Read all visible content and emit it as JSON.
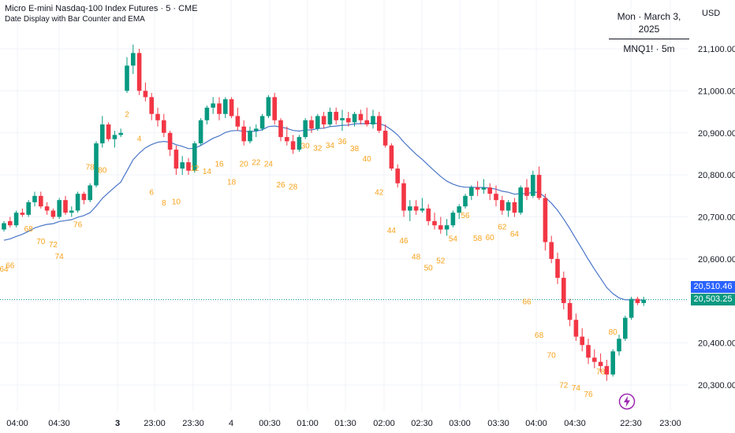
{
  "header": {
    "symbol_title": "Micro E-mini Nasdaq-100 Index Futures · 5 · CME",
    "indicator_title": "Date Display with Bar Counter and EMA"
  },
  "date_panel": {
    "date": "Mon · March 3, 2025",
    "ticker": "MNQ1! · 5m"
  },
  "currency": "USD",
  "price_tags": {
    "ema": "20,510.46",
    "last": "20,503.25"
  },
  "colors": {
    "up": "#089981",
    "down": "#f23645",
    "ema": "#4a76c8",
    "label": "#f7a21b",
    "grid": "#f0f3fa",
    "axis_text": "#131722",
    "dotted": "#089981"
  },
  "icons": {
    "bolt": "lightning-bolt-icon"
  },
  "chart_data": {
    "type": "candlestick",
    "y_axis_ticks": [
      "21,100.00",
      "21,000.00",
      "20,900.00",
      "20,800.00",
      "20,700.00",
      "20,600.00",
      "20,500.00",
      "20,400.00",
      "20,300.00"
    ],
    "y_axis_values": [
      21100,
      21000,
      20900,
      20800,
      20700,
      20600,
      20500,
      20400,
      20300
    ],
    "ylim": [
      20250,
      21210
    ],
    "x_axis_ticks": [
      "04:00",
      "04:30",
      "3",
      "23:00",
      "23:30",
      "4",
      "00:30",
      "01:00",
      "01:30",
      "02:00",
      "02:30",
      "03:00",
      "03:30",
      "04:00",
      "04:30",
      "22:30",
      "23:00"
    ],
    "last_price": 20503.25,
    "ema_value": 20510.46,
    "candles": [
      [
        20670,
        20690,
        20665,
        20685
      ],
      [
        20690,
        20700,
        20675,
        20680
      ],
      [
        20680,
        20715,
        20675,
        20710
      ],
      [
        20710,
        20720,
        20700,
        20705
      ],
      [
        20705,
        20740,
        20700,
        20735
      ],
      [
        20735,
        20760,
        20725,
        20750
      ],
      [
        20750,
        20760,
        20720,
        20725
      ],
      [
        20725,
        20735,
        20705,
        20715
      ],
      [
        20715,
        20720,
        20695,
        20700
      ],
      [
        20700,
        20745,
        20695,
        20740
      ],
      [
        20740,
        20750,
        20705,
        20710
      ],
      [
        20710,
        20725,
        20700,
        20715
      ],
      [
        20715,
        20760,
        20710,
        20755
      ],
      [
        20755,
        20760,
        20730,
        20740
      ],
      [
        20740,
        20780,
        20735,
        20775
      ],
      [
        20775,
        20880,
        20770,
        20875
      ],
      [
        20875,
        20940,
        20865,
        20920
      ],
      [
        20920,
        20925,
        20880,
        20885
      ],
      [
        20885,
        20905,
        20865,
        20895
      ],
      [
        20895,
        20910,
        20890,
        20900
      ],
      [
        21000,
        21080,
        20995,
        21060
      ],
      [
        21060,
        21110,
        21040,
        21090
      ],
      [
        21090,
        21100,
        20990,
        21000
      ],
      [
        21000,
        21020,
        20975,
        20985
      ],
      [
        20985,
        20995,
        20930,
        20945
      ],
      [
        20945,
        20960,
        20915,
        20930
      ],
      [
        20930,
        20945,
        20890,
        20900
      ],
      [
        20900,
        20905,
        20845,
        20860
      ],
      [
        20860,
        20870,
        20800,
        20815
      ],
      [
        20815,
        20845,
        20800,
        20830
      ],
      [
        20830,
        20840,
        20800,
        20810
      ],
      [
        20810,
        20880,
        20805,
        20875
      ],
      [
        20875,
        20935,
        20870,
        20930
      ],
      [
        20930,
        20965,
        20920,
        20960
      ],
      [
        20960,
        20985,
        20945,
        20970
      ],
      [
        20970,
        20985,
        20930,
        20945
      ],
      [
        20945,
        20985,
        20935,
        20980
      ],
      [
        20980,
        20985,
        20935,
        20940
      ],
      [
        20940,
        20960,
        20905,
        20915
      ],
      [
        20915,
        20930,
        20870,
        20880
      ],
      [
        20880,
        20915,
        20875,
        20905
      ],
      [
        20905,
        20920,
        20890,
        20910
      ],
      [
        20910,
        20945,
        20905,
        20940
      ],
      [
        20940,
        20990,
        20935,
        20985
      ],
      [
        20985,
        20995,
        20920,
        20930
      ],
      [
        20930,
        20935,
        20880,
        20890
      ],
      [
        20890,
        20915,
        20870,
        20880
      ],
      [
        20880,
        20895,
        20850,
        20860
      ],
      [
        20860,
        20895,
        20855,
        20890
      ],
      [
        20890,
        20935,
        20885,
        20930
      ],
      [
        20930,
        20940,
        20900,
        20910
      ],
      [
        20910,
        20945,
        20905,
        20940
      ],
      [
        20940,
        20950,
        20910,
        20920
      ],
      [
        20920,
        20960,
        20915,
        20950
      ],
      [
        20950,
        20960,
        20920,
        20930
      ],
      [
        20930,
        20955,
        20905,
        20935
      ],
      [
        20935,
        20950,
        20915,
        20925
      ],
      [
        20925,
        20950,
        20915,
        20945
      ],
      [
        20945,
        20955,
        20920,
        20930
      ],
      [
        20930,
        20960,
        20915,
        20920
      ],
      [
        20920,
        20955,
        20910,
        20940
      ],
      [
        20940,
        20950,
        20900,
        20905
      ],
      [
        20905,
        20920,
        20865,
        20870
      ],
      [
        20870,
        20875,
        20810,
        20815
      ],
      [
        20815,
        20825,
        20770,
        20780
      ],
      [
        20780,
        20790,
        20700,
        20715
      ],
      [
        20715,
        20740,
        20690,
        20725
      ],
      [
        20725,
        20740,
        20705,
        20715
      ],
      [
        20715,
        20745,
        20710,
        20720
      ],
      [
        20720,
        20730,
        20680,
        20690
      ],
      [
        20690,
        20710,
        20670,
        20680
      ],
      [
        20680,
        20700,
        20660,
        20670
      ],
      [
        20670,
        20695,
        20655,
        20680
      ],
      [
        20680,
        20715,
        20675,
        20710
      ],
      [
        20710,
        20730,
        20695,
        20725
      ],
      [
        20725,
        20755,
        20720,
        20750
      ],
      [
        20750,
        20775,
        20740,
        20770
      ],
      [
        20770,
        20785,
        20750,
        20765
      ],
      [
        20765,
        20790,
        20755,
        20770
      ],
      [
        20770,
        20780,
        20740,
        20755
      ],
      [
        20755,
        20775,
        20725,
        20740
      ],
      [
        20740,
        20750,
        20705,
        20715
      ],
      [
        20715,
        20740,
        20700,
        20735
      ],
      [
        20735,
        20745,
        20700,
        20710
      ],
      [
        20710,
        20775,
        20705,
        20770
      ],
      [
        20770,
        20790,
        20740,
        20750
      ],
      [
        20750,
        20810,
        20745,
        20800
      ],
      [
        20800,
        20820,
        20740,
        20745
      ],
      [
        20745,
        20755,
        20620,
        20640
      ],
      [
        20640,
        20655,
        20590,
        20600
      ],
      [
        20600,
        20615,
        20540,
        20555
      ],
      [
        20555,
        20570,
        20480,
        20495
      ],
      [
        20495,
        20505,
        20440,
        20455
      ],
      [
        20455,
        20470,
        20405,
        20415
      ],
      [
        20415,
        20435,
        20380,
        20395
      ],
      [
        20395,
        20410,
        20350,
        20365
      ],
      [
        20365,
        20385,
        20340,
        20355
      ],
      [
        20355,
        20375,
        20330,
        20345
      ],
      [
        20345,
        20360,
        20310,
        20325
      ],
      [
        20325,
        20385,
        20320,
        20380
      ],
      [
        20380,
        20420,
        20370,
        20410
      ],
      [
        20410,
        20465,
        20405,
        20460
      ],
      [
        20460,
        20510,
        20455,
        20505
      ],
      [
        20505,
        20510,
        20490,
        20495
      ],
      [
        20495,
        20510,
        20488,
        20503
      ]
    ],
    "bar_labels": [
      {
        "text": "64",
        "i": 0,
        "v": 20570
      },
      {
        "text": "66",
        "i": 1,
        "v": 20578
      },
      {
        "text": "68",
        "i": 4,
        "v": 20665
      },
      {
        "text": "70",
        "i": 6,
        "v": 20635
      },
      {
        "text": "72",
        "i": 8,
        "v": 20628
      },
      {
        "text": "74",
        "i": 9,
        "v": 20600
      },
      {
        "text": "76",
        "i": 12,
        "v": 20676
      },
      {
        "text": "78",
        "i": 14,
        "v": 20812
      },
      {
        "text": "80",
        "i": 16,
        "v": 20805
      },
      {
        "text": "2",
        "i": 20,
        "v": 20938
      },
      {
        "text": "4",
        "i": 22,
        "v": 20880
      },
      {
        "text": "6",
        "i": 24,
        "v": 20752
      },
      {
        "text": "8",
        "i": 26,
        "v": 20727
      },
      {
        "text": "10",
        "i": 28,
        "v": 20730
      },
      {
        "text": "12",
        "i": 31,
        "v": 20810
      },
      {
        "text": "14",
        "i": 33,
        "v": 20802
      },
      {
        "text": "16",
        "i": 35,
        "v": 20820
      },
      {
        "text": "18",
        "i": 37,
        "v": 20777
      },
      {
        "text": "20",
        "i": 39,
        "v": 20820
      },
      {
        "text": "22",
        "i": 41,
        "v": 20824
      },
      {
        "text": "24",
        "i": 43,
        "v": 20820
      },
      {
        "text": "26",
        "i": 45,
        "v": 20770
      },
      {
        "text": "28",
        "i": 47,
        "v": 20766
      },
      {
        "text": "30",
        "i": 49,
        "v": 20863
      },
      {
        "text": "32",
        "i": 51,
        "v": 20857
      },
      {
        "text": "34",
        "i": 53,
        "v": 20864
      },
      {
        "text": "36",
        "i": 55,
        "v": 20873
      },
      {
        "text": "38",
        "i": 57,
        "v": 20856
      },
      {
        "text": "40",
        "i": 59,
        "v": 20832
      },
      {
        "text": "42",
        "i": 61,
        "v": 20752
      },
      {
        "text": "44",
        "i": 63,
        "v": 20662
      },
      {
        "text": "46",
        "i": 65,
        "v": 20637
      },
      {
        "text": "48",
        "i": 67,
        "v": 20599
      },
      {
        "text": "50",
        "i": 69,
        "v": 20573
      },
      {
        "text": "52",
        "i": 71,
        "v": 20589
      },
      {
        "text": "54",
        "i": 73,
        "v": 20642
      },
      {
        "text": "56",
        "i": 75,
        "v": 20697
      },
      {
        "text": "58",
        "i": 77,
        "v": 20643
      },
      {
        "text": "60",
        "i": 79,
        "v": 20645
      },
      {
        "text": "62",
        "i": 81,
        "v": 20670
      },
      {
        "text": "64",
        "i": 83,
        "v": 20653
      },
      {
        "text": "66",
        "i": 85,
        "v": 20492
      },
      {
        "text": "68",
        "i": 87,
        "v": 20412
      },
      {
        "text": "70",
        "i": 89,
        "v": 20365
      },
      {
        "text": "72",
        "i": 91,
        "v": 20293
      },
      {
        "text": "74",
        "i": 93,
        "v": 20287
      },
      {
        "text": "76",
        "i": 95,
        "v": 20272
      },
      {
        "text": "78",
        "i": 97,
        "v": 20325
      },
      {
        "text": "80",
        "i": 99,
        "v": 20420
      }
    ]
  }
}
